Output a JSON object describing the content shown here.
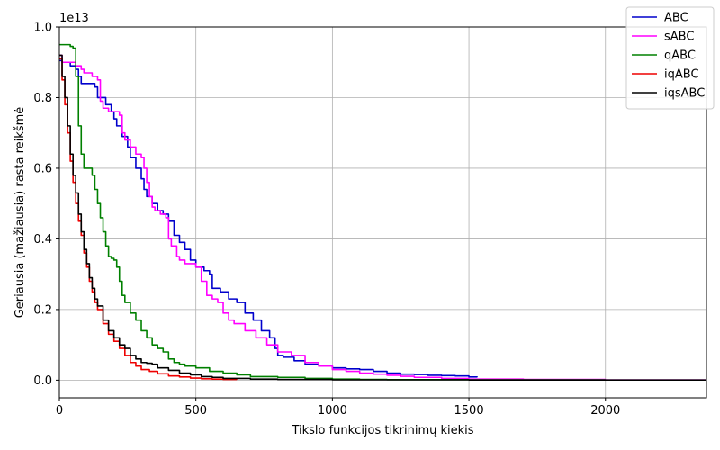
{
  "chart_data": {
    "type": "line",
    "title": "",
    "xlabel": "Tikslo funkcijos tikrinimų kiekis",
    "ylabel": "Geriausia (mažiausia) rasta reikšmė",
    "offset_text": "1e13",
    "xlim": [
      0,
      2370
    ],
    "ylim": [
      -0.05,
      1.0
    ],
    "x_ticks": [
      0,
      500,
      1000,
      1500,
      2000
    ],
    "x_tick_labels": [
      "0",
      "500",
      "1000",
      "1500",
      "2000"
    ],
    "y_ticks": [
      0.0,
      0.2,
      0.4,
      0.6,
      0.8,
      1.0
    ],
    "y_tick_labels": [
      "0.0",
      "0.2",
      "0.4",
      "0.6",
      "0.8",
      "1.0"
    ],
    "grid": true,
    "legend_position": "top-right",
    "series": [
      {
        "name": "ABC",
        "color": "#0000cc",
        "x": [
          0,
          10,
          40,
          60,
          70,
          80,
          130,
          140,
          150,
          170,
          190,
          200,
          210,
          230,
          250,
          260,
          280,
          300,
          310,
          320,
          340,
          360,
          380,
          400,
          420,
          440,
          460,
          480,
          500,
          530,
          550,
          560,
          590,
          620,
          650,
          680,
          710,
          740,
          770,
          790,
          800,
          820,
          860,
          900,
          950,
          1000,
          1050,
          1100,
          1150,
          1200,
          1250,
          1300,
          1350,
          1400,
          1450,
          1500,
          1530
        ],
        "y": [
          0.905,
          0.9,
          0.89,
          0.88,
          0.86,
          0.84,
          0.83,
          0.8,
          0.8,
          0.78,
          0.76,
          0.74,
          0.72,
          0.69,
          0.66,
          0.63,
          0.6,
          0.57,
          0.54,
          0.52,
          0.5,
          0.48,
          0.47,
          0.45,
          0.41,
          0.39,
          0.37,
          0.34,
          0.32,
          0.31,
          0.3,
          0.26,
          0.25,
          0.23,
          0.22,
          0.19,
          0.17,
          0.14,
          0.12,
          0.09,
          0.07,
          0.065,
          0.055,
          0.045,
          0.04,
          0.035,
          0.032,
          0.03,
          0.025,
          0.02,
          0.017,
          0.016,
          0.014,
          0.013,
          0.012,
          0.009,
          0.008
        ]
      },
      {
        "name": "sABC",
        "color": "#ff00ff",
        "x": [
          0,
          10,
          60,
          80,
          90,
          120,
          140,
          150,
          160,
          180,
          200,
          220,
          230,
          240,
          260,
          280,
          300,
          310,
          320,
          330,
          340,
          350,
          370,
          390,
          400,
          410,
          430,
          440,
          460,
          480,
          500,
          520,
          540,
          560,
          580,
          600,
          620,
          640,
          680,
          720,
          760,
          800,
          850,
          900,
          950,
          1000,
          1050,
          1100,
          1150,
          1200,
          1250,
          1300,
          1400,
          1500,
          1700,
          2000,
          2370
        ],
        "y": [
          0.92,
          0.9,
          0.89,
          0.88,
          0.87,
          0.86,
          0.85,
          0.79,
          0.77,
          0.76,
          0.76,
          0.75,
          0.7,
          0.68,
          0.66,
          0.64,
          0.63,
          0.6,
          0.56,
          0.52,
          0.49,
          0.48,
          0.47,
          0.46,
          0.4,
          0.38,
          0.35,
          0.34,
          0.33,
          0.33,
          0.32,
          0.28,
          0.24,
          0.23,
          0.22,
          0.19,
          0.17,
          0.16,
          0.14,
          0.12,
          0.1,
          0.08,
          0.07,
          0.05,
          0.04,
          0.03,
          0.025,
          0.02,
          0.017,
          0.014,
          0.011,
          0.008,
          0.005,
          0.003,
          0.002,
          0.001,
          0.0005
        ]
      },
      {
        "name": "qABC",
        "color": "#008000",
        "x": [
          0,
          20,
          40,
          50,
          60,
          70,
          80,
          90,
          100,
          110,
          120,
          130,
          140,
          150,
          160,
          170,
          180,
          190,
          200,
          210,
          220,
          230,
          240,
          260,
          280,
          300,
          320,
          340,
          360,
          380,
          400,
          420,
          440,
          460,
          480,
          500,
          550,
          600,
          650,
          700,
          800,
          900,
          1000,
          1100,
          1200,
          1500,
          2000,
          2370
        ],
        "y": [
          0.95,
          0.95,
          0.945,
          0.94,
          0.86,
          0.72,
          0.64,
          0.6,
          0.6,
          0.6,
          0.58,
          0.54,
          0.5,
          0.46,
          0.42,
          0.38,
          0.35,
          0.345,
          0.34,
          0.32,
          0.28,
          0.24,
          0.22,
          0.19,
          0.17,
          0.14,
          0.12,
          0.1,
          0.09,
          0.08,
          0.06,
          0.05,
          0.045,
          0.04,
          0.04,
          0.035,
          0.025,
          0.02,
          0.015,
          0.01,
          0.008,
          0.005,
          0.003,
          0.002,
          0.0015,
          0.001,
          0.0005,
          0.0003
        ]
      },
      {
        "name": "iqABC",
        "color": "#ee0000",
        "x": [
          0,
          10,
          20,
          30,
          40,
          50,
          60,
          70,
          80,
          90,
          100,
          110,
          120,
          130,
          140,
          160,
          180,
          200,
          220,
          240,
          260,
          280,
          300,
          330,
          360,
          400,
          440,
          480,
          520,
          560,
          600,
          650
        ],
        "y": [
          0.91,
          0.85,
          0.78,
          0.7,
          0.62,
          0.56,
          0.5,
          0.45,
          0.41,
          0.36,
          0.32,
          0.28,
          0.25,
          0.22,
          0.2,
          0.16,
          0.13,
          0.11,
          0.09,
          0.07,
          0.05,
          0.04,
          0.03,
          0.025,
          0.018,
          0.012,
          0.009,
          0.006,
          0.004,
          0.003,
          0.002,
          0.0015
        ]
      },
      {
        "name": "iqsABC",
        "color": "#000000",
        "x": [
          0,
          10,
          20,
          30,
          40,
          50,
          60,
          70,
          80,
          90,
          100,
          110,
          120,
          130,
          140,
          160,
          180,
          200,
          220,
          240,
          260,
          280,
          300,
          320,
          340,
          360,
          400,
          440,
          480,
          520,
          560,
          600,
          700,
          800,
          1000,
          1500,
          2000,
          2370
        ],
        "y": [
          0.92,
          0.86,
          0.8,
          0.72,
          0.64,
          0.58,
          0.53,
          0.47,
          0.42,
          0.37,
          0.33,
          0.29,
          0.26,
          0.23,
          0.21,
          0.17,
          0.14,
          0.12,
          0.1,
          0.09,
          0.07,
          0.06,
          0.05,
          0.048,
          0.045,
          0.035,
          0.028,
          0.02,
          0.015,
          0.01,
          0.008,
          0.005,
          0.003,
          0.002,
          0.001,
          0.0005,
          0.0003,
          0.0002
        ]
      }
    ]
  }
}
